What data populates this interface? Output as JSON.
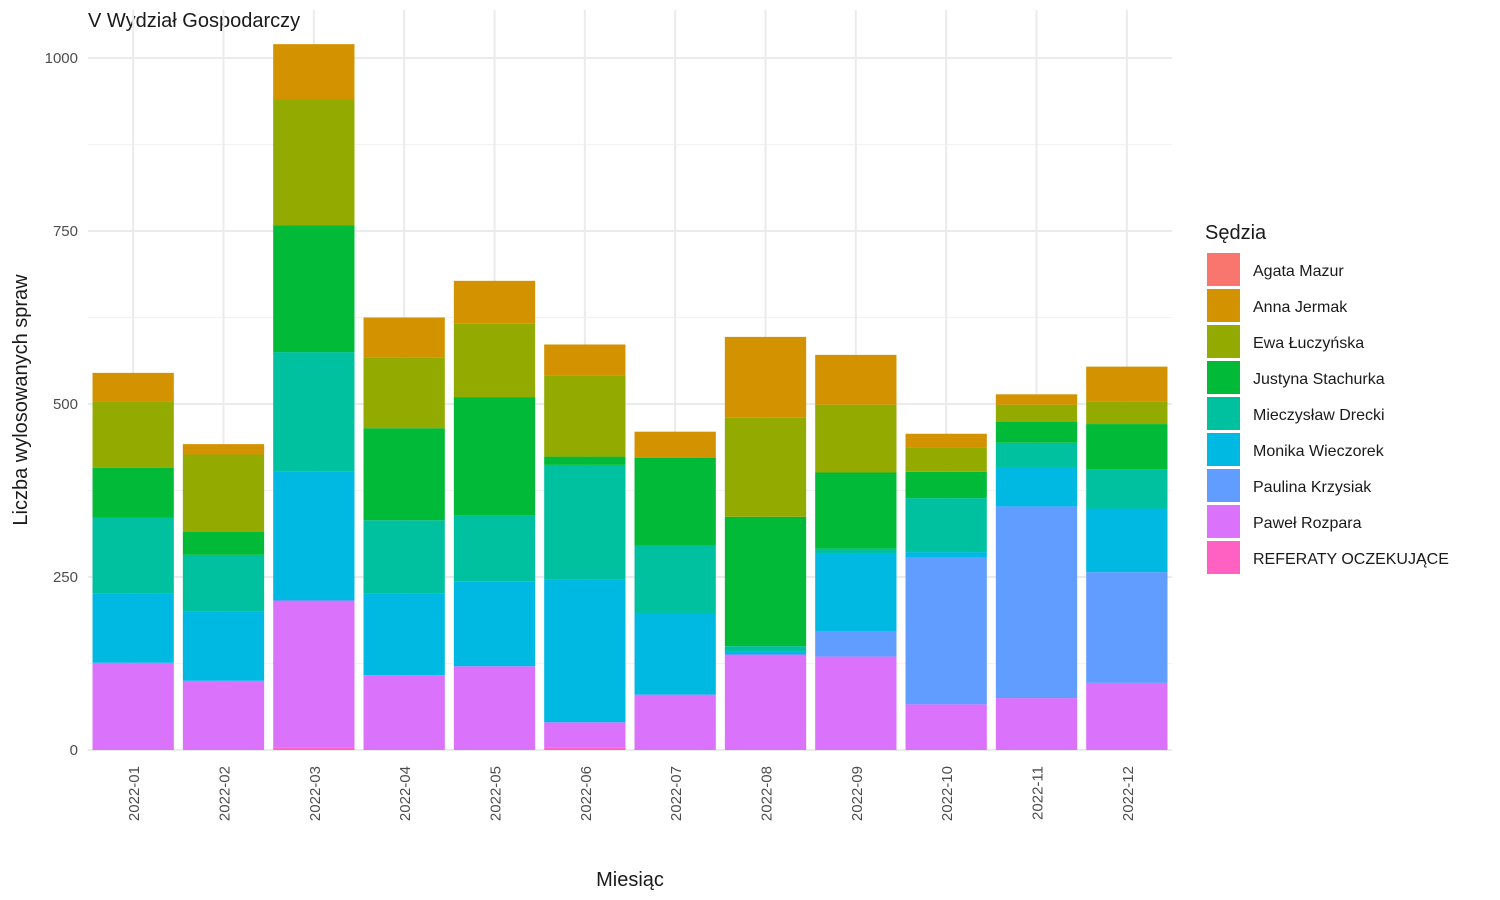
{
  "chart_data": {
    "type": "bar",
    "stacked": true,
    "title": "V Wydział Gospodarczy",
    "xlabel": "Miesiąc",
    "ylabel": "Liczba wylosowanych spraw",
    "ylim": [
      0,
      1040
    ],
    "y_ticks": [
      0,
      250,
      500,
      750,
      1000
    ],
    "y_minor_ticks": [
      125,
      375,
      625,
      875
    ],
    "grid": true,
    "legend": {
      "title": "Sędzia",
      "position": "right"
    },
    "categories": [
      "2022-01",
      "2022-02",
      "2022-03",
      "2022-04",
      "2022-05",
      "2022-06",
      "2022-07",
      "2022-08",
      "2022-09",
      "2022-10",
      "2022-11",
      "2022-12"
    ],
    "series": [
      {
        "name": "Agata Mazur",
        "color": "#F8766D",
        "values": [
          0,
          0,
          0,
          0,
          0,
          0,
          0,
          0,
          0,
          0,
          0,
          0
        ]
      },
      {
        "name": "Anna Jermak",
        "color": "#D39200",
        "values": [
          42,
          15,
          80,
          58,
          62,
          45,
          38,
          117,
          72,
          20,
          15,
          50
        ]
      },
      {
        "name": "Ewa Łuczyńska",
        "color": "#93AA00",
        "values": [
          95,
          112,
          182,
          102,
          106,
          117,
          0,
          143,
          98,
          35,
          25,
          33
        ]
      },
      {
        "name": "Justyna Stachurka",
        "color": "#00BA38",
        "values": [
          72,
          33,
          183,
          133,
          171,
          12,
          127,
          187,
          110,
          38,
          30,
          65
        ]
      },
      {
        "name": "Mieczysław Drecki",
        "color": "#00C19F",
        "values": [
          110,
          82,
          172,
          106,
          95,
          165,
          97,
          7,
          7,
          78,
          35,
          57
        ]
      },
      {
        "name": "Monika Wieczorek",
        "color": "#00B9E3",
        "values": [
          100,
          100,
          187,
          118,
          123,
          207,
          118,
          5,
          112,
          8,
          57,
          92
        ]
      },
      {
        "name": "Paulina Krzysiak",
        "color": "#619CFF",
        "values": [
          0,
          0,
          0,
          0,
          0,
          0,
          0,
          0,
          37,
          212,
          277,
          160
        ]
      },
      {
        "name": "Paweł Rozpara",
        "color": "#DB72FB",
        "values": [
          126,
          100,
          212,
          108,
          121,
          36,
          80,
          138,
          135,
          66,
          75,
          97
        ]
      },
      {
        "name": "REFERATY OCZEKUJĄCE",
        "color": "#FF61C3",
        "values": [
          0,
          0,
          4,
          0,
          0,
          4,
          0,
          0,
          0,
          0,
          0,
          0
        ]
      }
    ]
  }
}
